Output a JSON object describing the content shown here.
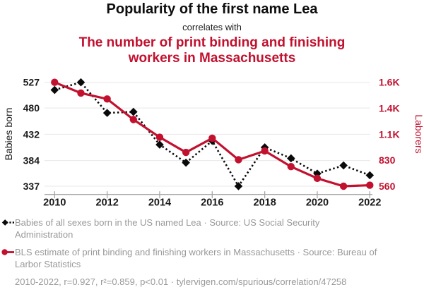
{
  "header": {
    "title": "Popularity of the first name Lea",
    "subtitle": "correlates with",
    "secondary_title_lines": [
      "The number of print binding and finishing",
      "workers in Massachusetts"
    ]
  },
  "colors": {
    "accent_red": "#c2112f",
    "series_black": "#0a0a0a",
    "legend_gray": "#999999",
    "gridline": "#e8e8e8",
    "axis_line": "#a6a6a6"
  },
  "chart_data": {
    "type": "line",
    "title": "Popularity of the first name Lea correlates with the number of print binding and finishing workers in Massachusetts",
    "x": [
      2010,
      2011,
      2012,
      2013,
      2014,
      2015,
      2016,
      2017,
      2018,
      2019,
      2020,
      2021,
      2022
    ],
    "x_ticks": [
      2010,
      2012,
      2014,
      2016,
      2018,
      2020,
      2022
    ],
    "series": [
      {
        "name": "Babies of all sexes born in the US named Lea",
        "axis": "left",
        "color": "#0a0a0a",
        "line_style": "dashed",
        "marker": "diamond",
        "values": [
          513,
          527,
          471,
          473,
          413,
          380,
          420,
          337,
          408,
          388,
          360,
          375,
          357
        ]
      },
      {
        "name": "BLS estimate of print binding and finishing workers in Massachusetts",
        "axis": "right",
        "color": "#c2112f",
        "line_style": "solid",
        "marker": "circle",
        "values": [
          1620,
          1510,
          1450,
          1240,
          1060,
          905,
          1050,
          830,
          920,
          760,
          640,
          560,
          570
        ]
      }
    ],
    "axes": {
      "left": {
        "label": "Babies born",
        "range": [
          337,
          527
        ],
        "tick_values": [
          527,
          480,
          432,
          384,
          337
        ],
        "tick_labels": [
          "527",
          "480",
          "432",
          "384",
          "337"
        ]
      },
      "right": {
        "label": "Laborers",
        "range": [
          560,
          1620
        ],
        "tick_values": [
          1620,
          1355,
          1090,
          825,
          560
        ],
        "tick_labels": [
          "1.6K",
          "1.4K",
          "1.1K",
          "830",
          "560"
        ]
      }
    },
    "grid": true,
    "legend_position": "bottom"
  },
  "legend": {
    "items": [
      {
        "label": "Babies of all sexes born in the US named Lea · Source: US Social Security Administration",
        "marker": "black-diamond-dashed"
      },
      {
        "label": "BLS estimate of print binding and finishing workers in Massachusetts · Source: Bureau of Larbor Statistics",
        "marker": "red-circle-solid"
      }
    ]
  },
  "footer": {
    "stats": "2010-2022, r=0.927, r²=0.859, p<0.01 · tylervigen.com/spurious/correlation/47258"
  }
}
